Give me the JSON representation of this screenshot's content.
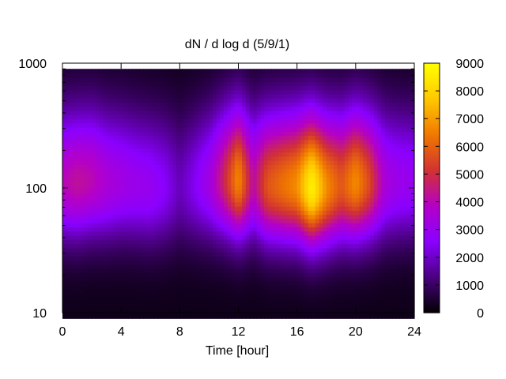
{
  "chart_data": {
    "type": "heatmap",
    "title": "dN / d log d (5/9/1)",
    "xlabel": "Time [hour]",
    "ylabel": "",
    "xlim": [
      0,
      24
    ],
    "ylim": [
      10,
      1000
    ],
    "y_scale": "log",
    "x_ticks": [
      "0",
      "4",
      "8",
      "12",
      "16",
      "20",
      "24"
    ],
    "y_ticks": [
      "10",
      "100",
      "1000"
    ],
    "colorbar": {
      "range": [
        0,
        9000
      ],
      "ticks": [
        "0",
        "1000",
        "2000",
        "3000",
        "4000",
        "5000",
        "6000",
        "7000",
        "8000",
        "9000"
      ],
      "palette": [
        "#000000",
        "#4a0080",
        "#8a00ff",
        "#b400c8",
        "#d23232",
        "#f07800",
        "#ffc800",
        "#ffff00"
      ]
    },
    "x_hours": [
      0,
      1,
      2,
      3,
      4,
      5,
      6,
      7,
      8,
      9,
      10,
      11,
      12,
      13,
      14,
      15,
      16,
      17,
      18,
      19,
      20,
      21,
      22,
      23,
      24
    ],
    "peak_diameter": [
      110,
      110,
      115,
      110,
      110,
      105,
      100,
      100,
      100,
      105,
      110,
      115,
      115,
      110,
      105,
      105,
      105,
      100,
      100,
      105,
      110,
      110,
      110,
      110,
      110
    ],
    "peak_value": [
      3700,
      4000,
      3800,
      3300,
      3000,
      2800,
      2700,
      2300,
      1600,
      2200,
      3000,
      4500,
      6500,
      3800,
      5500,
      6000,
      6500,
      8500,
      6500,
      5500,
      6500,
      5200,
      3200,
      2800,
      2700
    ]
  }
}
